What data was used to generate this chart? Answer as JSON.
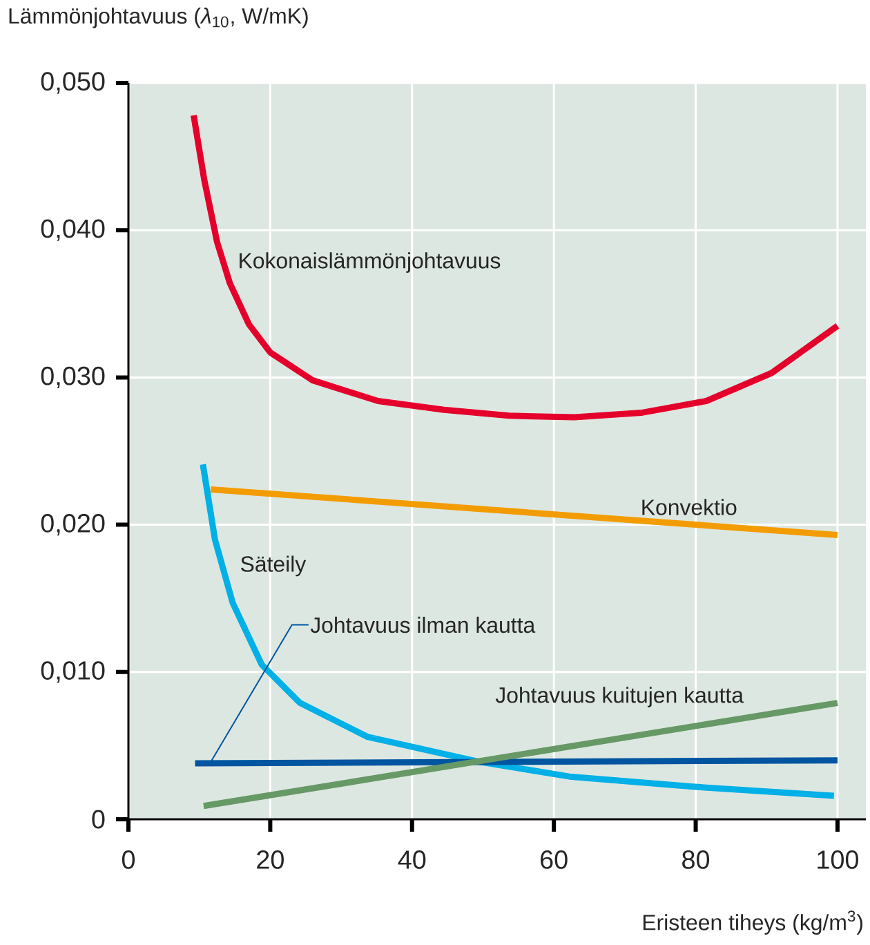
{
  "chart_data": {
    "type": "line",
    "xlabel": "Eristeen tiheys (kg/m$^{3}$)",
    "ylabel": "Lämmönjohtavuus (*λ*$_{10}$, W/mK)",
    "xlim": [
      0,
      104
    ],
    "ylim": [
      0,
      0.05
    ],
    "xticks": [
      0,
      20,
      40,
      60,
      80,
      100
    ],
    "yticks": [
      0,
      {
        "value": 0.01,
        "label": "0,010"
      },
      {
        "value": 0.02,
        "label": "0,020"
      },
      {
        "value": 0.03,
        "label": "0,030"
      },
      {
        "value": 0.04,
        "label": "0,040"
      },
      {
        "value": 0.05,
        "label": "0,050"
      }
    ],
    "grid": true,
    "marker": "none",
    "line_style": "solid",
    "series": [
      {
        "name": "Kokonaislämmönjohtavuus",
        "color": "#e4002b",
        "x": [
          9.2,
          10.7,
          12.5,
          14.3,
          17,
          20,
          26,
          35.2,
          44.5,
          53.7,
          62.9,
          72.3,
          81.5,
          90.7,
          100
        ],
        "values": [
          0.0478,
          0.0434,
          0.0392,
          0.0364,
          0.0336,
          0.0317,
          0.0298,
          0.0284,
          0.0278,
          0.0274,
          0.0273,
          0.0276,
          0.0284,
          0.0303,
          0.0335
        ]
      },
      {
        "name": "Konvektio",
        "color": "#f39c00",
        "x": [
          11.6,
          100
        ],
        "values": [
          0.0224,
          0.0193
        ]
      },
      {
        "name": "Säteily",
        "color": "#00b0e6",
        "x": [
          10.5,
          12.2,
          14.7,
          18.8,
          24.2,
          33.7,
          49.5,
          62.2,
          79.9,
          99.5
        ],
        "values": [
          0.0241,
          0.019,
          0.0147,
          0.0105,
          0.0079,
          0.0056,
          0.0039,
          0.0029,
          0.0022,
          0.0016
        ]
      },
      {
        "name": "Johtavuus ilman kautta",
        "color": "#0055a0",
        "x": [
          9.4,
          100
        ],
        "values": [
          0.0038,
          0.004
        ]
      },
      {
        "name": "Johtavuus kuitujen kautta",
        "color": "#669966",
        "x": [
          10.6,
          100
        ],
        "values": [
          0.0009,
          0.0079
        ]
      }
    ]
  }
}
